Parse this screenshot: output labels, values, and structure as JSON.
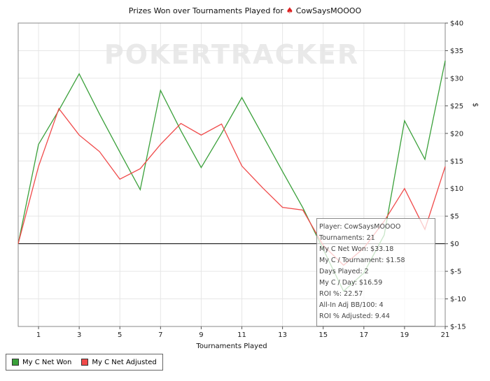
{
  "chart_data": {
    "type": "line",
    "title": "Prizes Won over Tournaments Played for",
    "player_name": "CowSaysMOOOO",
    "watermark": "POKERTRACKER",
    "xlabel": "Tournaments Played",
    "ylabel": "$",
    "x": [
      0,
      1,
      2,
      3,
      4,
      5,
      6,
      7,
      8,
      9,
      10,
      11,
      12,
      13,
      14,
      15,
      16,
      17,
      18,
      19,
      20,
      21
    ],
    "xticks": [
      "1",
      "3",
      "5",
      "7",
      "9",
      "11",
      "13",
      "15",
      "17",
      "19",
      "21"
    ],
    "xtick_values": [
      1,
      3,
      5,
      7,
      9,
      11,
      13,
      15,
      17,
      19,
      21
    ],
    "yticks": [
      "$40",
      "$35",
      "$30",
      "$25",
      "$20",
      "$15",
      "$10",
      "$5",
      "$0",
      "$-5",
      "$-10",
      "$-15"
    ],
    "ytick_values": [
      40,
      35,
      30,
      25,
      20,
      15,
      10,
      5,
      0,
      -5,
      -10,
      -15
    ],
    "ylim": [
      -15,
      40
    ],
    "xlim": [
      0,
      21
    ],
    "grid": true,
    "series": [
      {
        "name": "My C Net Won",
        "color": "#3aa03a",
        "values": [
          0,
          18,
          24.2,
          30.8,
          23.5,
          16.6,
          9.8,
          27.8,
          20.5,
          13.8,
          20,
          26.5,
          19.8,
          13.1,
          6.5,
          -1,
          -8.6,
          -5.3,
          1.6,
          22.3,
          15.3,
          33.2
        ]
      },
      {
        "name": "My C Net Adjusted",
        "color": "#f04a4a",
        "values": [
          0,
          14,
          24.5,
          19.7,
          16.7,
          11.7,
          13.6,
          18,
          21.8,
          19.7,
          21.7,
          14.1,
          10.2,
          6.6,
          6.1,
          -0.3,
          -3.9,
          -0.8,
          4.1,
          10,
          2.6,
          14
        ]
      }
    ],
    "legend_position": "bottom-left"
  },
  "tooltip": {
    "lines": [
      "Player: CowSaysMOOOO",
      "Tournaments: 21",
      "My C Net Won: $33.18",
      "My C / Tournament: $1.58",
      "Days Played: 2",
      "My C / Day: $16.59",
      "ROI %: 22.57",
      "All-In Adj BB/100: 4",
      "ROI % Adjusted: 9.44"
    ]
  },
  "colors": {
    "grid": "#e6e6e6",
    "axis": "#000000",
    "watermark": "#e9e9e9",
    "spade": "#dd2222"
  },
  "icons": {
    "player_icon": "spade-icon"
  }
}
